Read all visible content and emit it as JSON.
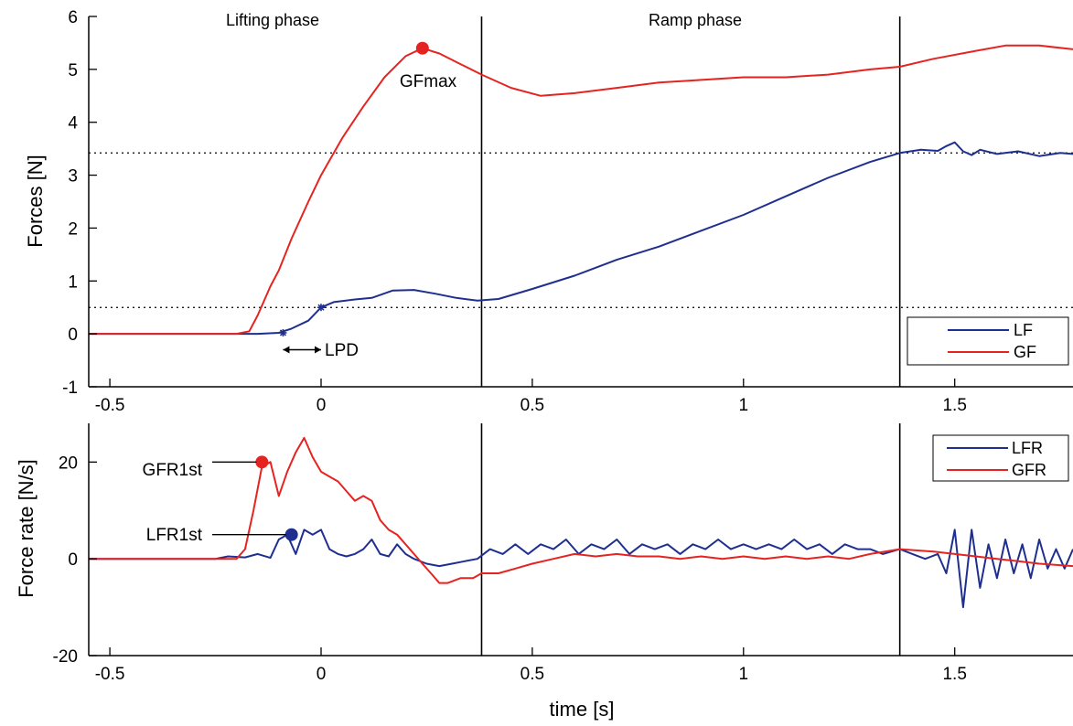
{
  "chart_data": [
    {
      "type": "line",
      "xlim": [
        -0.55,
        1.78
      ],
      "ylim": [
        -1,
        6
      ],
      "x_ticks": [
        -0.5,
        0,
        0.5,
        1,
        1.5
      ],
      "x_tick_labels": [
        "-0.5",
        "0",
        "0.5",
        "1",
        "1.5"
      ],
      "y_ticks": [
        -1,
        0,
        1,
        2,
        3,
        4,
        5,
        6
      ],
      "y_tick_labels": [
        "-1",
        "0",
        "1",
        "2",
        "3",
        "4",
        "5",
        "6"
      ],
      "xlabel": "",
      "ylabel": "Forces [N]",
      "grid": false,
      "legend": {
        "position": "bottom-right",
        "entries": [
          "LF",
          "GF"
        ]
      },
      "phase_boundaries": [
        0.38,
        1.37
      ],
      "phase_labels": [
        {
          "text": "Lifting phase",
          "x": -0.05
        },
        {
          "text": "Ramp phase",
          "x": 0.88
        }
      ],
      "threshold_lines": [
        0.5,
        3.42
      ],
      "series": [
        {
          "name": "LF",
          "color": "#1f2f8f",
          "x": [
            -0.55,
            -0.2,
            -0.15,
            -0.1,
            -0.07,
            -0.03,
            0,
            0.03,
            0.08,
            0.12,
            0.17,
            0.22,
            0.27,
            0.32,
            0.37,
            0.42,
            0.5,
            0.6,
            0.7,
            0.8,
            0.9,
            1.0,
            1.1,
            1.2,
            1.3,
            1.37,
            1.42,
            1.46,
            1.48,
            1.5,
            1.52,
            1.54,
            1.56,
            1.6,
            1.65,
            1.7,
            1.75,
            1.78
          ],
          "y": [
            0,
            0,
            0,
            0.02,
            0.1,
            0.25,
            0.5,
            0.6,
            0.65,
            0.68,
            0.82,
            0.83,
            0.76,
            0.68,
            0.63,
            0.66,
            0.85,
            1.1,
            1.4,
            1.65,
            1.95,
            2.25,
            2.6,
            2.95,
            3.25,
            3.42,
            3.48,
            3.46,
            3.55,
            3.62,
            3.45,
            3.38,
            3.48,
            3.4,
            3.45,
            3.36,
            3.42,
            3.4
          ]
        },
        {
          "name": "GF",
          "color": "#e52421",
          "x": [
            -0.55,
            -0.2,
            -0.17,
            -0.15,
            -0.12,
            -0.1,
            -0.07,
            -0.03,
            0,
            0.05,
            0.1,
            0.15,
            0.2,
            0.24,
            0.28,
            0.33,
            0.38,
            0.45,
            0.52,
            0.6,
            0.7,
            0.8,
            0.9,
            1.0,
            1.1,
            1.2,
            1.3,
            1.37,
            1.45,
            1.55,
            1.62,
            1.7,
            1.78
          ],
          "y": [
            0,
            0,
            0.05,
            0.35,
            0.9,
            1.2,
            1.8,
            2.5,
            3.0,
            3.7,
            4.3,
            4.85,
            5.25,
            5.4,
            5.3,
            5.1,
            4.9,
            4.65,
            4.5,
            4.55,
            4.65,
            4.75,
            4.8,
            4.85,
            4.85,
            4.9,
            5.0,
            5.05,
            5.2,
            5.35,
            5.45,
            5.45,
            5.38
          ]
        }
      ],
      "markers": [
        {
          "label": "GFmax",
          "x": 0.24,
          "y": 5.4,
          "color": "#e52421",
          "style": "dot"
        },
        {
          "label": "",
          "x": -0.09,
          "y": 0.02,
          "color": "#1f2f8f",
          "style": "star"
        },
        {
          "label": "",
          "x": 0.0,
          "y": 0.5,
          "color": "#1f2f8f",
          "style": "star"
        }
      ],
      "annotations": [
        {
          "text": "GFmax",
          "x": 0.24,
          "y": 4.88
        },
        {
          "text": "LPD",
          "x": 0.0,
          "y": -0.3
        }
      ]
    },
    {
      "type": "line",
      "xlim": [
        -0.55,
        1.78
      ],
      "ylim": [
        -20,
        28
      ],
      "x_ticks": [
        -0.5,
        0,
        0.5,
        1,
        1.5
      ],
      "x_tick_labels": [
        "-0.5",
        "0",
        "0.5",
        "1",
        "1.5"
      ],
      "y_ticks": [
        -20,
        0,
        20
      ],
      "y_tick_labels": [
        "-20",
        "0",
        "20"
      ],
      "xlabel": "time [s]",
      "ylabel": "Force rate [N/s]",
      "grid": false,
      "legend": {
        "position": "top-right",
        "entries": [
          "LFR",
          "GFR"
        ]
      },
      "phase_boundaries": [
        0.38,
        1.37
      ],
      "series": [
        {
          "name": "LFR",
          "color": "#1f2f8f",
          "x": [
            -0.55,
            -0.25,
            -0.22,
            -0.18,
            -0.15,
            -0.12,
            -0.1,
            -0.08,
            -0.06,
            -0.04,
            -0.02,
            0.0,
            0.02,
            0.04,
            0.06,
            0.08,
            0.1,
            0.12,
            0.14,
            0.16,
            0.18,
            0.2,
            0.22,
            0.25,
            0.28,
            0.31,
            0.34,
            0.37,
            0.4,
            0.43,
            0.46,
            0.49,
            0.52,
            0.55,
            0.58,
            0.61,
            0.64,
            0.67,
            0.7,
            0.73,
            0.76,
            0.79,
            0.82,
            0.85,
            0.88,
            0.91,
            0.94,
            0.97,
            1.0,
            1.03,
            1.06,
            1.09,
            1.12,
            1.15,
            1.18,
            1.21,
            1.24,
            1.27,
            1.3,
            1.33,
            1.37,
            1.4,
            1.43,
            1.46,
            1.48,
            1.5,
            1.52,
            1.54,
            1.56,
            1.58,
            1.6,
            1.62,
            1.64,
            1.66,
            1.68,
            1.7,
            1.72,
            1.74,
            1.76,
            1.78
          ],
          "y": [
            0,
            0,
            0.5,
            0.3,
            1,
            0.2,
            4,
            5,
            1,
            6,
            5,
            6,
            2,
            1,
            0.5,
            1,
            2,
            4,
            1,
            0.5,
            3,
            1,
            0,
            -1,
            -1.5,
            -1,
            -0.5,
            0,
            2,
            1,
            3,
            1,
            3,
            2,
            4,
            1,
            3,
            2,
            4,
            1,
            3,
            2,
            3,
            1,
            3,
            2,
            4,
            2,
            3,
            2,
            3,
            2,
            4,
            2,
            3,
            1,
            3,
            2,
            2,
            1,
            2,
            1,
            0,
            1,
            -3,
            6,
            -10,
            6,
            -6,
            3,
            -4,
            4,
            -3,
            3,
            -4,
            4,
            -2,
            2,
            -2,
            2
          ]
        },
        {
          "name": "GFR",
          "color": "#e52421",
          "x": [
            -0.55,
            -0.2,
            -0.18,
            -0.16,
            -0.14,
            -0.12,
            -0.1,
            -0.08,
            -0.06,
            -0.04,
            -0.02,
            0.0,
            0.02,
            0.04,
            0.06,
            0.08,
            0.1,
            0.12,
            0.14,
            0.16,
            0.18,
            0.2,
            0.22,
            0.24,
            0.26,
            0.28,
            0.3,
            0.33,
            0.36,
            0.38,
            0.42,
            0.46,
            0.5,
            0.55,
            0.6,
            0.65,
            0.7,
            0.75,
            0.8,
            0.85,
            0.9,
            0.95,
            1.0,
            1.05,
            1.1,
            1.15,
            1.2,
            1.25,
            1.3,
            1.37,
            1.45,
            1.5,
            1.55,
            1.6,
            1.65,
            1.7,
            1.78
          ],
          "y": [
            0,
            0,
            2,
            10,
            19,
            20,
            13,
            18,
            22,
            25,
            21,
            18,
            17,
            16,
            14,
            12,
            13,
            12,
            8,
            6,
            5,
            3,
            1,
            -1,
            -3,
            -5,
            -5,
            -4,
            -4,
            -3,
            -3,
            -2,
            -1,
            0,
            1,
            0.5,
            1,
            0.5,
            0.5,
            0,
            0.5,
            0,
            0.5,
            0,
            0.5,
            0,
            0.5,
            0,
            1,
            2,
            1.5,
            1,
            0.5,
            0,
            -0.5,
            -1,
            -1.5
          ]
        }
      ],
      "markers": [
        {
          "label": "GFR1st",
          "x": -0.14,
          "y": 20,
          "color": "#e52421",
          "style": "dot"
        },
        {
          "label": "LFR1st",
          "x": -0.07,
          "y": 5,
          "color": "#1f2f8f",
          "style": "dot"
        }
      ],
      "annotations": [
        {
          "text": "GFR1st",
          "x": -0.35,
          "y": 20
        },
        {
          "text": "LFR1st",
          "x": -0.35,
          "y": 5
        }
      ]
    }
  ]
}
